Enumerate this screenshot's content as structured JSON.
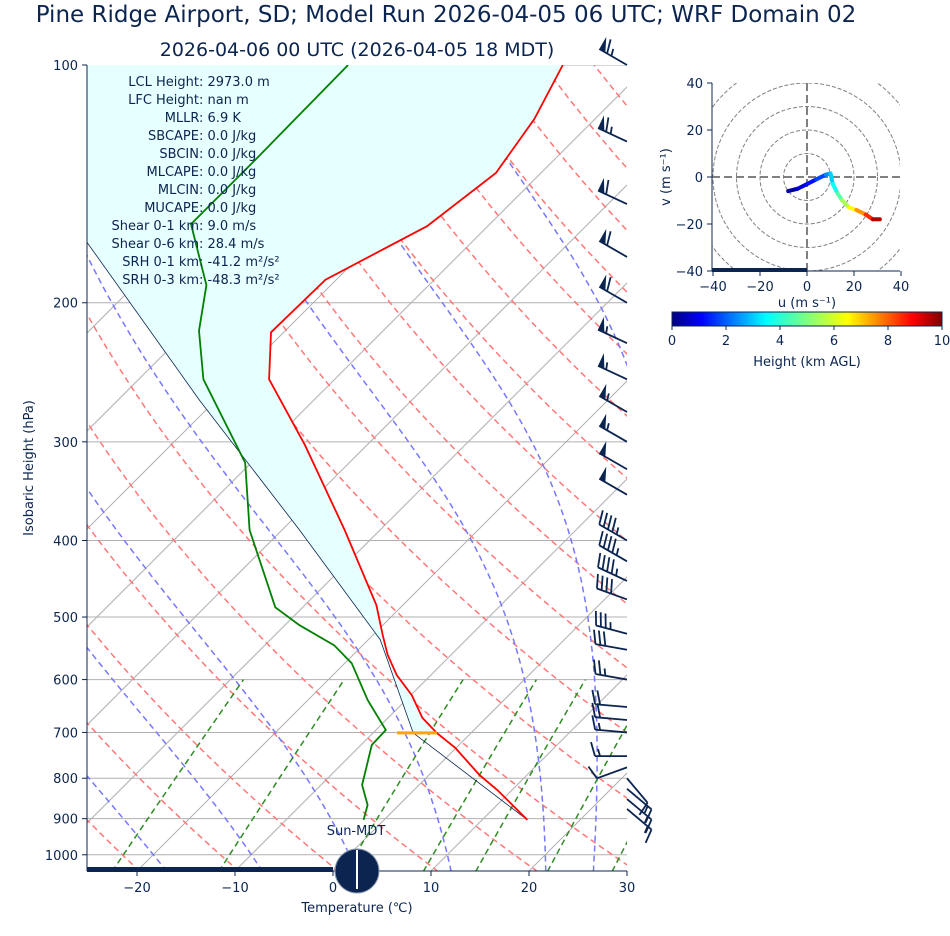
{
  "title": "Pine Ridge Airport, SD; Model Run 2026-04-05 06 UTC; WRF Domain 02",
  "subtitle": "2026-04-06 00 UTC  (2026-04-05 18 MDT)",
  "colors": {
    "text": "#0b2550",
    "temperature": "#ff0000",
    "dewpoint": "#008000",
    "parcel": "#0b2550",
    "dry_adiabat": "#ff7777",
    "moist_adiabat": "#7777ff",
    "mixing_ratio": "#2e8b22",
    "isotherm": "#b0b0b0",
    "cin_fill": "#e6ffff",
    "lcl_marker": "#ffa500"
  },
  "indices": [
    "LCL Height: 2973.0 m",
    "LFC Height: nan m",
    "MLLR: 6.9 K",
    "SBCAPE: 0.0 J/kg",
    "SBCIN: 0.0 J/kg",
    "MLCAPE: 0.0 J/kg",
    "MLCIN: 0.0 J/kg",
    "MUCAPE: 0.0 J/kg",
    "Shear 0-1 km: 9.0 m/s",
    "Shear 0-6 km: 28.4 m/s",
    "SRH 0-1 km: -41.2 m²/s²",
    "SRH 0-3 km: -48.3 m²/s²"
  ],
  "sun_label": "Sun-MDT",
  "chart_data": [
    {
      "type": "line",
      "kind": "skew-t",
      "xlabel": "Temperature (℃)",
      "ylabel": "Isobaric Height (hPa)",
      "xlim": [
        -25,
        30
      ],
      "ylim": [
        1050,
        100
      ],
      "y_scale": "log",
      "x_ticks": [
        -20,
        -10,
        0,
        10,
        20,
        30
      ],
      "y_ticks": [
        100,
        200,
        300,
        400,
        500,
        600,
        700,
        800,
        900,
        1000
      ],
      "grid": true,
      "temperature_profile": [
        [
          903,
          14.6
        ],
        [
          828,
          8.5
        ],
        [
          793,
          5.2
        ],
        [
          732,
          -0.1
        ],
        [
          701,
          -3.5
        ],
        [
          671,
          -6.5
        ],
        [
          628,
          -9.9
        ],
        [
          592,
          -13.5
        ],
        [
          558,
          -16.5
        ],
        [
          527,
          -19.0
        ],
        [
          483,
          -22.7
        ],
        [
          388,
          -33.6
        ],
        [
          303,
          -46.3
        ],
        [
          250,
          -56.7
        ],
        [
          218,
          -61.3
        ],
        [
          187,
          -61.1
        ],
        [
          160,
          -56.2
        ],
        [
          137,
          -54.6
        ],
        [
          117,
          -56.2
        ],
        [
          100,
          -58.8
        ]
      ],
      "dewpoint_profile": [
        [
          903,
          -2.1
        ],
        [
          865,
          -3.2
        ],
        [
          816,
          -5.8
        ],
        [
          726,
          -8.9
        ],
        [
          695,
          -9.0
        ],
        [
          637,
          -13.9
        ],
        [
          572,
          -19.3
        ],
        [
          543,
          -22.9
        ],
        [
          512,
          -28.5
        ],
        [
          486,
          -32.8
        ],
        [
          388,
          -43.3
        ],
        [
          319,
          -50.6
        ],
        [
          250,
          -63.4
        ],
        [
          217,
          -68.8
        ],
        [
          190,
          -72.7
        ],
        [
          159,
          -80.5
        ],
        [
          132,
          -80.5
        ],
        [
          100,
          -80.7
        ]
      ],
      "parcel_profile": [
        [
          903,
          14.6
        ],
        [
          701,
          -5.9
        ],
        [
          534,
          -18.8
        ],
        [
          388,
          -38.2
        ],
        [
          266,
          -61.6
        ],
        [
          167,
          -89.5
        ]
      ],
      "lcl_pressure": 701,
      "wind_barbs": [
        [
          100,
          300,
          65
        ],
        [
          125,
          295,
          65
        ],
        [
          150,
          295,
          60
        ],
        [
          175,
          300,
          60
        ],
        [
          200,
          300,
          60
        ],
        [
          225,
          295,
          55
        ],
        [
          250,
          295,
          55
        ],
        [
          275,
          300,
          55
        ],
        [
          300,
          300,
          55
        ],
        [
          325,
          300,
          50
        ],
        [
          350,
          300,
          50
        ],
        [
          400,
          300,
          45
        ],
        [
          425,
          300,
          45
        ],
        [
          450,
          295,
          45
        ],
        [
          475,
          290,
          40
        ],
        [
          525,
          285,
          35
        ],
        [
          550,
          280,
          30
        ],
        [
          600,
          280,
          25
        ],
        [
          650,
          275,
          20
        ],
        [
          675,
          275,
          20
        ],
        [
          700,
          275,
          15
        ],
        [
          750,
          270,
          15
        ],
        [
          775,
          250,
          10
        ],
        [
          800,
          140,
          10
        ],
        [
          825,
          130,
          15
        ],
        [
          850,
          130,
          15
        ],
        [
          875,
          130,
          15
        ]
      ]
    },
    {
      "type": "line",
      "kind": "hodograph",
      "xlabel": "u (m s⁻¹)",
      "ylabel": "v (m s⁻¹)",
      "xlim": [
        -40,
        40
      ],
      "ylim": [
        -40,
        40
      ],
      "x_ticks": [
        -40,
        -20,
        0,
        20,
        40
      ],
      "y_ticks": [
        -40,
        -20,
        0,
        20,
        40
      ],
      "rings": [
        10,
        20,
        30,
        40,
        50
      ],
      "points_u_v_heightkm": [
        [
          -8,
          -6,
          0
        ],
        [
          -4,
          -5,
          0.5
        ],
        [
          0,
          -3,
          1
        ],
        [
          4,
          -1,
          1.5
        ],
        [
          8,
          1,
          2
        ],
        [
          10,
          1.5,
          2.8
        ],
        [
          11,
          -3,
          3.3
        ],
        [
          13,
          -7,
          4
        ],
        [
          15,
          -10,
          5
        ],
        [
          18,
          -13,
          6
        ],
        [
          21,
          -14,
          7
        ],
        [
          25,
          -16,
          8
        ],
        [
          28,
          -18,
          9
        ],
        [
          31,
          -18,
          10
        ]
      ],
      "colorbar": {
        "label": "Height (km AGL)",
        "range": [
          0,
          10
        ],
        "ticks": [
          0,
          2,
          4,
          6,
          8,
          10
        ],
        "colormap": "jet"
      }
    }
  ]
}
